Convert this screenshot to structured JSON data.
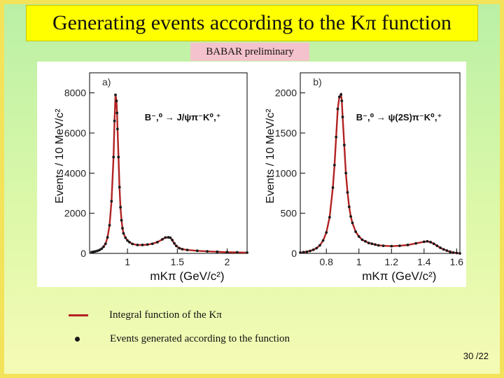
{
  "slide": {
    "title": "Generating events according to the Kπ function",
    "preliminary": "BABAR preliminary",
    "page_number": "30 /22"
  },
  "legend": {
    "line_label": "Integral function of the Kπ",
    "points_label": "Events generated according to the function",
    "line_color": "#b22222",
    "point_color": "#1a1a1a"
  },
  "chart_data": [
    {
      "type": "line",
      "panel_label": "a)",
      "decay_label": "B⁻,⁰ → J/ψπ⁻K⁰,⁺",
      "xlabel": "mKπ (GeV/c²)",
      "ylabel": "Events / 10 MeV/c²",
      "xlim": [
        0.62,
        2.2
      ],
      "ylim": [
        0,
        9000
      ],
      "xticks": [
        1,
        1.5,
        2
      ],
      "yticks": [
        0,
        2000,
        4000,
        6000,
        8000
      ],
      "series": [
        {
          "x": [
            0.64,
            0.66,
            0.68,
            0.7,
            0.72,
            0.74,
            0.76,
            0.78,
            0.8,
            0.82,
            0.84,
            0.86,
            0.87,
            0.88,
            0.89,
            0.895,
            0.9,
            0.91,
            0.92,
            0.93,
            0.94,
            0.95,
            0.96,
            0.98,
            1.0,
            1.02,
            1.05,
            1.1,
            1.15,
            1.2,
            1.25,
            1.3,
            1.35,
            1.38,
            1.41,
            1.43,
            1.45,
            1.47,
            1.49,
            1.52,
            1.55,
            1.6,
            1.7,
            1.8,
            1.9,
            2.0,
            2.1,
            2.2
          ],
          "y": [
            60,
            80,
            100,
            130,
            170,
            230,
            330,
            480,
            800,
            1400,
            2600,
            4800,
            6600,
            7900,
            7600,
            7000,
            6200,
            4800,
            3300,
            2300,
            1650,
            1250,
            1000,
            780,
            640,
            560,
            470,
            420,
            420,
            440,
            480,
            560,
            700,
            790,
            800,
            780,
            660,
            500,
            370,
            260,
            210,
            170,
            130,
            100,
            80,
            60,
            50,
            40
          ]
        }
      ]
    },
    {
      "type": "line",
      "panel_label": "b)",
      "decay_label": "B⁻,⁰ → ψ(2S)π⁻K⁰,⁺",
      "xlabel": "mKπ (GeV/c²)",
      "ylabel": "Events / 10 MeV/c²",
      "xlim": [
        0.64,
        1.62
      ],
      "ylim": [
        0,
        2250
      ],
      "xticks": [
        0.8,
        1,
        1.2,
        1.4,
        1.6
      ],
      "yticks": [
        0,
        500,
        1000,
        1500,
        2000
      ],
      "series": [
        {
          "x": [
            0.64,
            0.66,
            0.68,
            0.7,
            0.72,
            0.74,
            0.76,
            0.78,
            0.8,
            0.82,
            0.84,
            0.85,
            0.86,
            0.87,
            0.88,
            0.89,
            0.895,
            0.9,
            0.91,
            0.92,
            0.93,
            0.94,
            0.95,
            0.96,
            0.98,
            1.0,
            1.02,
            1.04,
            1.06,
            1.08,
            1.1,
            1.12,
            1.15,
            1.2,
            1.25,
            1.3,
            1.35,
            1.4,
            1.42,
            1.44,
            1.46,
            1.48,
            1.5,
            1.52,
            1.54,
            1.56,
            1.58,
            1.6,
            1.62
          ],
          "y": [
            10,
            15,
            20,
            30,
            45,
            65,
            100,
            160,
            260,
            450,
            820,
            1100,
            1450,
            1800,
            1950,
            1980,
            1900,
            1700,
            1350,
            1000,
            760,
            580,
            460,
            380,
            270,
            210,
            170,
            150,
            130,
            120,
            110,
            100,
            95,
            90,
            95,
            105,
            125,
            145,
            150,
            140,
            120,
            95,
            70,
            50,
            35,
            20,
            10,
            5,
            0
          ]
        }
      ]
    }
  ]
}
